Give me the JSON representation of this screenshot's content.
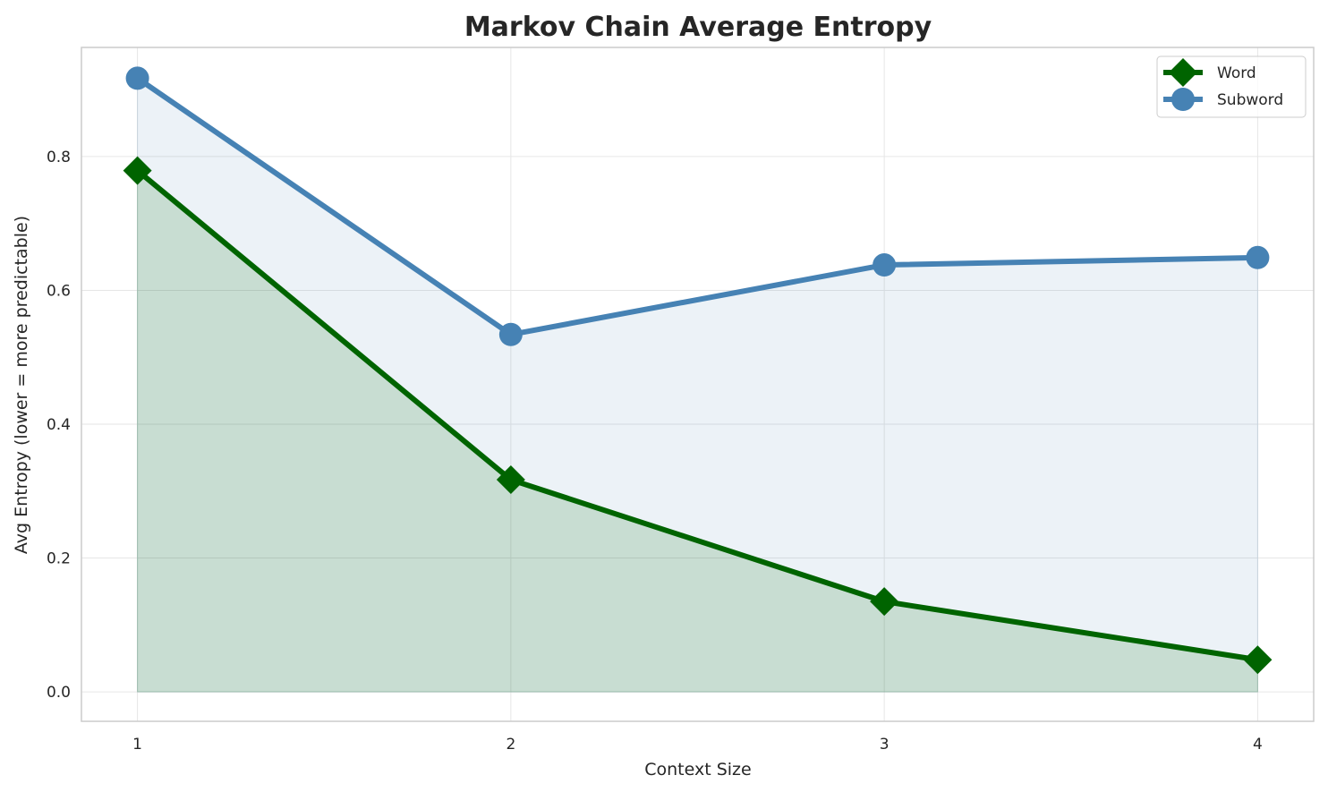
{
  "chart_data": {
    "type": "line",
    "title": "Markov Chain Average Entropy",
    "xlabel": "Context Size",
    "ylabel": "Avg Entropy (lower = more predictable)",
    "x": [
      1,
      2,
      3,
      4
    ],
    "xticks": [
      "1",
      "2",
      "3",
      "4"
    ],
    "yticks": [
      "0.0",
      "0.2",
      "0.4",
      "0.6",
      "0.8"
    ],
    "xlim": [
      0.85,
      4.15
    ],
    "ylim": [
      -0.044,
      0.963
    ],
    "grid": true,
    "legend_placement": "top-right",
    "series": [
      {
        "name": "Word",
        "values": [
          0.779,
          0.317,
          0.135,
          0.048
        ],
        "color": "#006400",
        "marker": "diamond",
        "filled_area": true
      },
      {
        "name": "Subword",
        "values": [
          0.917,
          0.534,
          0.638,
          0.649
        ],
        "color": "#4682b4",
        "marker": "circle",
        "filled_area": true
      }
    ]
  }
}
